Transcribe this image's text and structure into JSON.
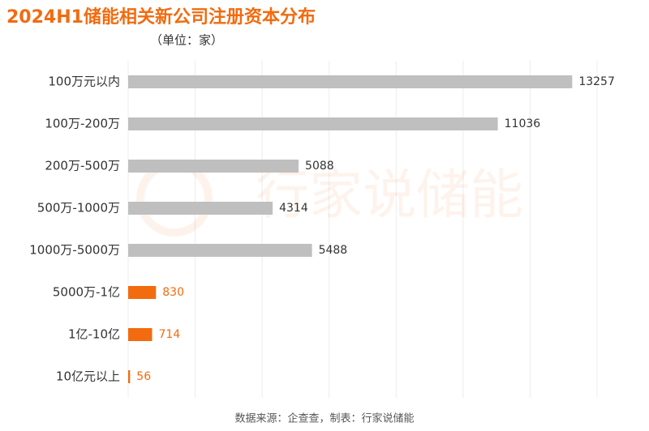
{
  "chart_data": {
    "type": "barh",
    "title": "2024H1储能相关新公司注册资本分布",
    "subtitle": "（单位：家）",
    "source": "数据来源：企查查，制表：行家说储能",
    "watermark": "行家说储能",
    "categories": [
      "100万元以内",
      "100万-200万",
      "200万-500万",
      "500万-1000万",
      "1000万-5000万",
      "5000万-1亿",
      "1亿-10亿",
      "10亿元以上"
    ],
    "values": [
      13257,
      11036,
      5088,
      4314,
      5488,
      830,
      714,
      56
    ],
    "colors": [
      "#bfbfbf",
      "#bfbfbf",
      "#bfbfbf",
      "#bfbfbf",
      "#bfbfbf",
      "#f26b0f",
      "#f26b0f",
      "#f26b0f"
    ],
    "value_label_colors": [
      "#333333",
      "#333333",
      "#333333",
      "#333333",
      "#333333",
      "#f26b0f",
      "#f26b0f",
      "#f26b0f"
    ],
    "title_color": "#f26b0f",
    "xlim": [
      0,
      14000
    ],
    "xticks": [
      0,
      2000,
      4000,
      6000,
      8000,
      10000,
      12000,
      14000
    ],
    "grid": true
  }
}
